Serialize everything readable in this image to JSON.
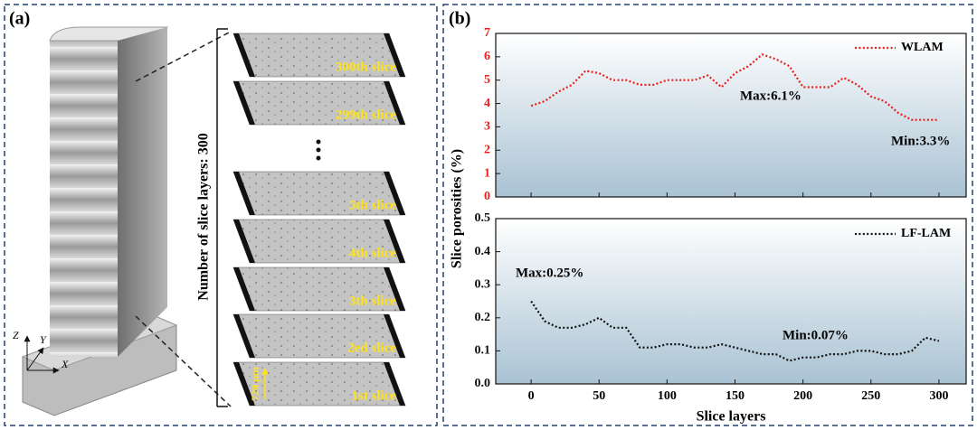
{
  "panel_a": {
    "label": "(a)",
    "count_label": "Number of slice layers:  300",
    "slices": [
      "300th slice",
      "299th slice",
      "5th slice",
      "4th slice",
      "3th slice",
      "2ed slice",
      "1st slice"
    ],
    "scale_label": "729 μm",
    "axes": [
      "Z",
      "Y",
      "X"
    ]
  },
  "panel_b": {
    "label": "(b)"
  },
  "chart_data": [
    {
      "type": "line",
      "ylabel": "Slice porosities (%)",
      "x": [
        0,
        10,
        20,
        30,
        40,
        50,
        60,
        70,
        80,
        90,
        100,
        110,
        120,
        130,
        140,
        150,
        160,
        170,
        180,
        190,
        200,
        210,
        220,
        230,
        240,
        250,
        260,
        270,
        280,
        290,
        300
      ],
      "series": [
        {
          "name": "WLAM",
          "color": "#e8201e",
          "values": [
            3.9,
            4.1,
            4.5,
            4.8,
            5.4,
            5.3,
            5.0,
            5.0,
            4.8,
            4.8,
            5.0,
            5.0,
            5.0,
            5.2,
            4.7,
            5.3,
            5.6,
            6.1,
            5.9,
            5.6,
            4.7,
            4.7,
            4.7,
            5.1,
            4.8,
            4.3,
            4.1,
            3.6,
            3.3,
            3.3,
            3.3
          ]
        }
      ],
      "annotations": [
        "Max:6.1%",
        "Min:3.3%"
      ],
      "xlim": [
        -26,
        320
      ],
      "xticks": [
        0,
        50,
        100,
        150,
        200,
        250,
        300
      ],
      "ylim": [
        0,
        7
      ],
      "yticks": [
        0,
        1,
        2,
        3,
        4,
        5,
        6,
        7
      ]
    },
    {
      "type": "line",
      "xlabel": "Slice layers",
      "x": [
        0,
        10,
        20,
        30,
        40,
        50,
        60,
        70,
        80,
        90,
        100,
        110,
        120,
        130,
        140,
        150,
        160,
        170,
        180,
        190,
        200,
        210,
        220,
        230,
        240,
        250,
        260,
        270,
        280,
        290,
        300
      ],
      "series": [
        {
          "name": "LF-LAM",
          "color": "#111111",
          "values": [
            0.25,
            0.19,
            0.17,
            0.17,
            0.18,
            0.2,
            0.17,
            0.17,
            0.11,
            0.11,
            0.12,
            0.12,
            0.11,
            0.11,
            0.12,
            0.11,
            0.1,
            0.09,
            0.09,
            0.07,
            0.08,
            0.08,
            0.09,
            0.09,
            0.1,
            0.1,
            0.09,
            0.09,
            0.1,
            0.14,
            0.13
          ]
        }
      ],
      "annotations": [
        "Max:0.25%",
        "Min:0.07%"
      ],
      "xlim": [
        -26,
        320
      ],
      "xticks": [
        0,
        50,
        100,
        150,
        200,
        250,
        300
      ],
      "ylim": [
        0,
        0.5
      ],
      "yticks": [
        {
          "value": 0,
          "label": "0.0"
        },
        0.1,
        0.2,
        0.3,
        0.4,
        0.5
      ]
    }
  ]
}
